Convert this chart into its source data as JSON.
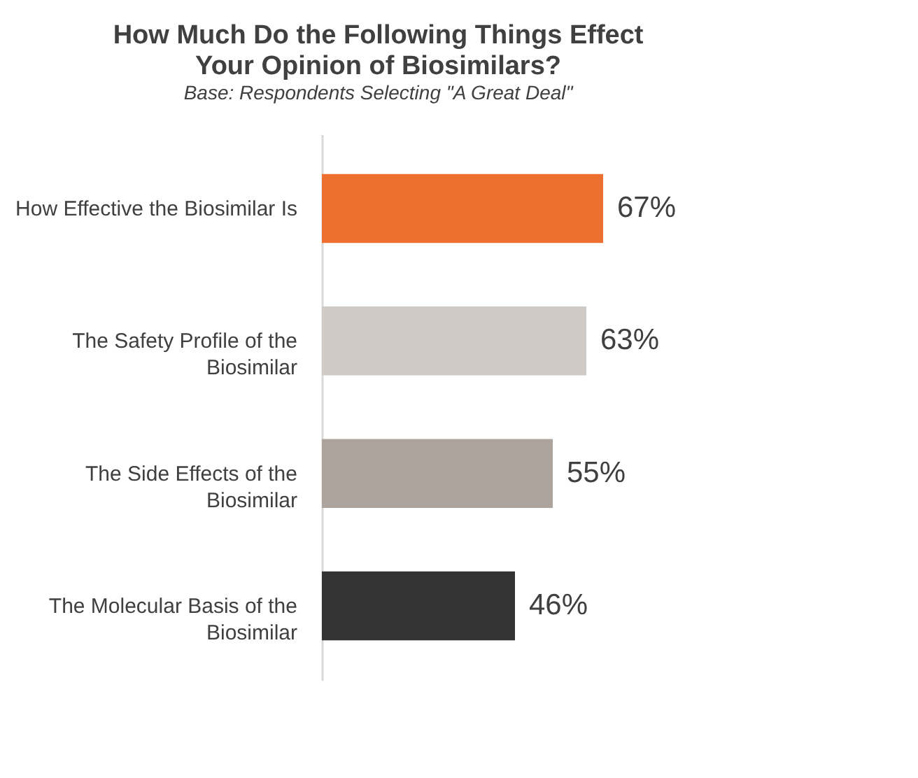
{
  "chart_data": {
    "type": "bar",
    "orientation": "horizontal",
    "title": [
      "How Much Do the Following Things Effect",
      "Your Opinion of Biosimilars?"
    ],
    "subtitle": "Base: Respondents Selecting \"A Great Deal\"",
    "categories": [
      "How Effective the Biosimilar Is",
      "The Safety Profile of the Biosimilar",
      "The Side Effects of the Biosimilar",
      "The Molecular Basis of the Biosimilar"
    ],
    "values": [
      67,
      63,
      55,
      46
    ],
    "colors": [
      "#ed7030",
      "#cfcac6",
      "#aba39c",
      "#333333"
    ],
    "value_labels": [
      "67%",
      "63%",
      "55%",
      "46%"
    ],
    "grid": false,
    "legend": false
  }
}
